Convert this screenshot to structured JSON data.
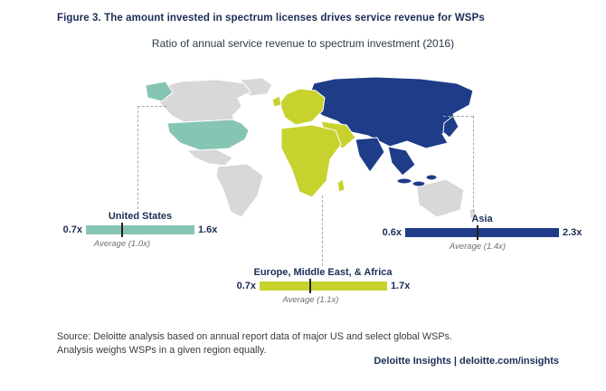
{
  "figure": {
    "title": "Figure 3. The amount invested in spectrum licenses drives service revenue for WSPs",
    "subtitle": "Ratio of annual service revenue to spectrum investment (2016)"
  },
  "chart_data": {
    "type": "range-bar",
    "title": "Ratio of annual service revenue to spectrum investment (2016)",
    "unit": "ratio (x)",
    "regions": [
      {
        "name": "United States",
        "min_label": "0.7x",
        "max_label": "1.6x",
        "average_label": "Average (1.0x)",
        "min_value": 0.7,
        "max_value": 1.6,
        "average": 1.0,
        "color": "#86c5b3"
      },
      {
        "name": "Asia",
        "min_label": "0.6x",
        "max_label": "2.3x",
        "average_label": "Average (1.4x)",
        "min_value": 0.6,
        "max_value": 2.3,
        "average": 1.4,
        "color": "#1e3c87"
      },
      {
        "name": "Europe, Middle East, & Africa",
        "min_label": "0.7x",
        "max_label": "1.7x",
        "average_label": "Average (1.1x)",
        "min_value": 0.7,
        "max_value": 1.7,
        "average": 1.1,
        "color": "#c8d22e"
      }
    ]
  },
  "map": {
    "regions": [
      {
        "name": "United States & Alaska",
        "color": "#86c5b3"
      },
      {
        "name": "Europe, Middle East, & Africa",
        "color": "#c8d22e"
      },
      {
        "name": "Asia",
        "color": "#1e3c87"
      },
      {
        "name": "Other regions (not analyzed)",
        "color": "#d8d8d8"
      }
    ]
  },
  "source": {
    "line1": "Source: Deloitte analysis based on annual report data of major US and select global WSPs.",
    "line2": "Analysis weighs WSPs in a given region equally."
  },
  "footer": {
    "brand": "Deloitte Insights",
    "separator": "|",
    "url": "deloitte.com/insights"
  }
}
